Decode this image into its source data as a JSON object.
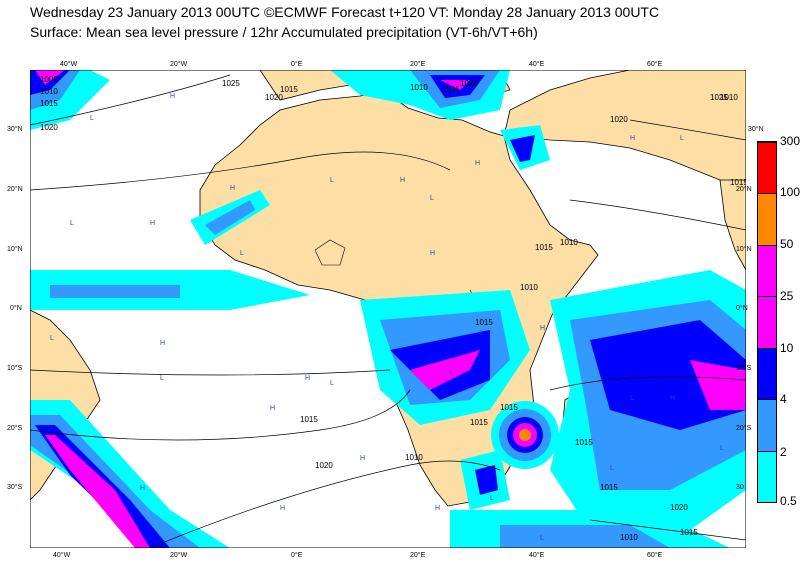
{
  "header": {
    "title_line1": "Wednesday 23 January 2013 00UTC ©ECMWF Forecast t+120 VT: Monday 28 January 2013 00UTC",
    "title_line2": "Surface: Mean sea level pressure / 12hr Accumulated precipitation (VT-6h/VT+6h)"
  },
  "map": {
    "top_ticks": [
      "40°W",
      "20°W",
      "0°E",
      "20°E",
      "40°E",
      "60°E"
    ],
    "bottom_ticks": [
      "40°W",
      "20°W",
      "0°E",
      "20°E",
      "40°E",
      "60°E"
    ],
    "left_ticks": [
      "30°N",
      "20°N",
      "10°N",
      "0°N",
      "10°S",
      "20°S",
      "30°S"
    ],
    "right_ticks": [
      "30°N",
      "20°N",
      "10°N",
      "0°N",
      "10°S",
      "20°S",
      "30"
    ],
    "isobar_labels": [
      "1005",
      "1010",
      "1015",
      "1020",
      "1025",
      "1015",
      "1020",
      "1010",
      "1015",
      "1020",
      "1020",
      "1015",
      "1010",
      "1015",
      "1010",
      "1015",
      "1015",
      "1015",
      "1010",
      "1015",
      "1020",
      "1025",
      "1015",
      "1010",
      "1020",
      "1015",
      "1015",
      "1010"
    ],
    "pressure_markers": [
      "H",
      "L",
      "H",
      "L",
      "H",
      "L",
      "H",
      "H",
      "L",
      "L",
      "H",
      "L",
      "H",
      "L",
      "L",
      "H",
      "L",
      "H",
      "L",
      "H",
      "H",
      "L",
      "H",
      "L",
      "H",
      "L",
      "H",
      "L",
      "H",
      "L",
      "L",
      "H",
      "L"
    ],
    "colors": {
      "ocean": "#ffffff",
      "land": "#fddfa6",
      "coast": "#000000",
      "isobar": "#000000"
    }
  },
  "legend": {
    "levels": [
      "0.5",
      "2",
      "4",
      "10",
      "25",
      "50",
      "100",
      "300"
    ],
    "colors": [
      "#00ffff",
      "#3399ff",
      "#0000ff",
      "#ff00ff",
      "#ff00ff",
      "#ff8800",
      "#ff0000"
    ]
  }
}
